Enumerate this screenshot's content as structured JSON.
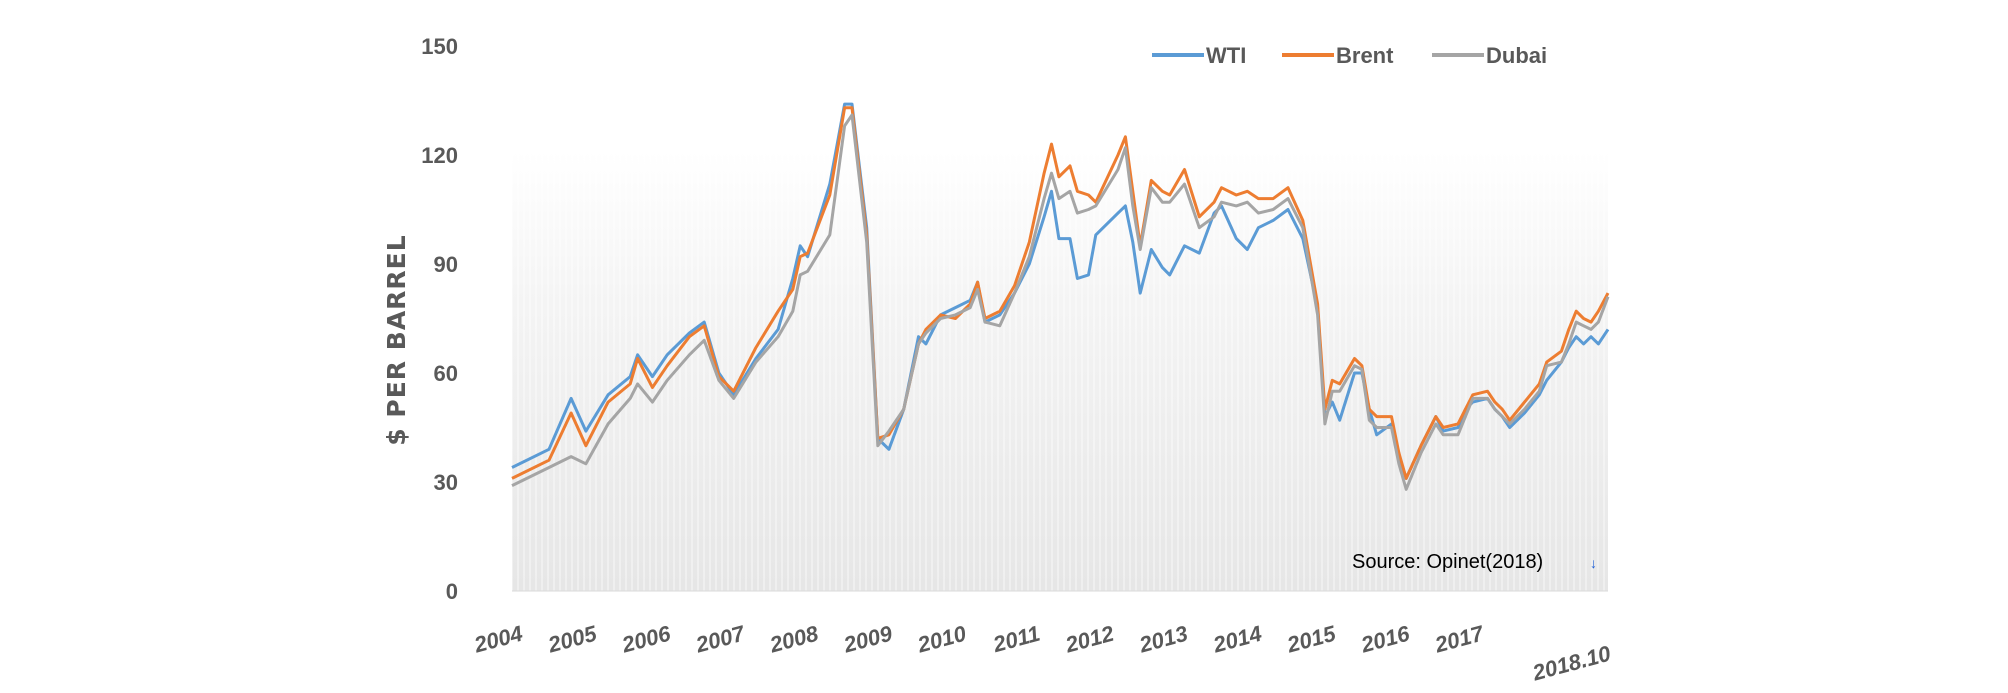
{
  "chart_data": {
    "type": "line",
    "title": "",
    "xlabel": "",
    "ylabel": "$ PER BARREL",
    "ylim": [
      0,
      150
    ],
    "yticks": [
      0,
      30,
      60,
      90,
      120,
      150
    ],
    "xlim": [
      2004.0,
      2018.83
    ],
    "xtick_labels": [
      "2004",
      "2005",
      "2006",
      "2007",
      "2008",
      "2009",
      "2010",
      "2011",
      "2012",
      "2013",
      "2014",
      "2015",
      "2016",
      "2017",
      "2018.10"
    ],
    "legend_position": "top-right",
    "grid": false,
    "source_note": "Source:  Opinet(2018)",
    "x": [
      2004.0,
      2004.5,
      2004.8,
      2005.0,
      2005.3,
      2005.6,
      2005.7,
      2005.9,
      2006.1,
      2006.4,
      2006.6,
      2006.8,
      2007.0,
      2007.3,
      2007.6,
      2007.8,
      2007.9,
      2008.0,
      2008.3,
      2008.5,
      2008.6,
      2008.8,
      2008.95,
      2009.1,
      2009.3,
      2009.5,
      2009.6,
      2009.8,
      2010.0,
      2010.2,
      2010.3,
      2010.4,
      2010.6,
      2010.8,
      2011.0,
      2011.2,
      2011.3,
      2011.4,
      2011.55,
      2011.65,
      2011.8,
      2011.9,
      2012.2,
      2012.3,
      2012.4,
      2012.5,
      2012.65,
      2012.8,
      2012.9,
      2013.1,
      2013.3,
      2013.5,
      2013.6,
      2013.8,
      2013.95,
      2014.1,
      2014.3,
      2014.5,
      2014.7,
      2014.9,
      2015.0,
      2015.1,
      2015.2,
      2015.4,
      2015.5,
      2015.6,
      2015.7,
      2015.9,
      2016.0,
      2016.1,
      2016.3,
      2016.5,
      2016.6,
      2016.8,
      2016.9,
      2017.0,
      2017.2,
      2017.3,
      2017.4,
      2017.5,
      2017.7,
      2017.9,
      2018.0,
      2018.2,
      2018.3,
      2018.4,
      2018.5,
      2018.6,
      2018.7,
      2018.83
    ],
    "series": [
      {
        "name": "WTI",
        "color": "#5B9BD5",
        "values": [
          34,
          39,
          53,
          44,
          54,
          59,
          65,
          59,
          65,
          71,
          74,
          60,
          54,
          64,
          72,
          86,
          95,
          92,
          112,
          134,
          134,
          100,
          42,
          39,
          50,
          70,
          68,
          76,
          78,
          80,
          85,
          74,
          76,
          82,
          90,
          103,
          110,
          97,
          97,
          86,
          87,
          98,
          104,
          106,
          96,
          82,
          94,
          89,
          87,
          95,
          93,
          104,
          106,
          97,
          94,
          100,
          102,
          105,
          97,
          78,
          48,
          52,
          47,
          60,
          60,
          50,
          43,
          46,
          37,
          31,
          40,
          48,
          44,
          45,
          50,
          52,
          53,
          50,
          48,
          45,
          49,
          54,
          58,
          63,
          67,
          70,
          68,
          70,
          68,
          72
        ]
      },
      {
        "name": "Brent",
        "color": "#ED7D31",
        "values": [
          31,
          36,
          49,
          40,
          52,
          57,
          64,
          56,
          62,
          70,
          73,
          59,
          55,
          67,
          77,
          83,
          92,
          93,
          109,
          133,
          133,
          98,
          42,
          43,
          50,
          68,
          72,
          76,
          75,
          79,
          85,
          75,
          77,
          84,
          96,
          115,
          123,
          114,
          117,
          110,
          109,
          107,
          120,
          125,
          110,
          95,
          113,
          110,
          109,
          116,
          103,
          107,
          111,
          109,
          110,
          108,
          108,
          111,
          102,
          79,
          50,
          58,
          57,
          64,
          62,
          50,
          48,
          48,
          38,
          31,
          40,
          48,
          45,
          46,
          50,
          54,
          55,
          52,
          50,
          47,
          52,
          57,
          63,
          66,
          72,
          77,
          75,
          74,
          77,
          82
        ]
      },
      {
        "name": "Dubai",
        "color": "#A5A5A5",
        "values": [
          29,
          34,
          37,
          35,
          46,
          53,
          57,
          52,
          58,
          65,
          69,
          58,
          53,
          63,
          70,
          77,
          87,
          88,
          98,
          128,
          131,
          96,
          40,
          44,
          50,
          68,
          71,
          75,
          76,
          78,
          83,
          74,
          73,
          82,
          92,
          108,
          115,
          108,
          110,
          104,
          105,
          106,
          116,
          122,
          106,
          94,
          111,
          107,
          107,
          112,
          100,
          103,
          107,
          106,
          107,
          104,
          105,
          108,
          100,
          76,
          46,
          55,
          55,
          62,
          61,
          47,
          45,
          45,
          35,
          28,
          38,
          46,
          43,
          43,
          48,
          53,
          53,
          50,
          48,
          46,
          50,
          55,
          62,
          63,
          68,
          74,
          73,
          72,
          74,
          81
        ]
      }
    ]
  }
}
